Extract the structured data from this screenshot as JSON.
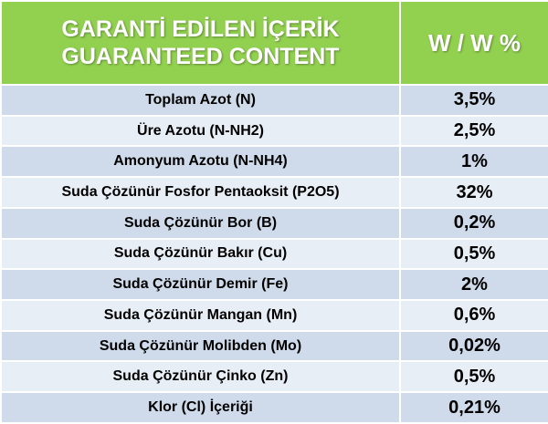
{
  "header": {
    "title_lines": [
      "GARANTİ EDİLEN İÇERİK",
      "GUARANTEED CONTENT"
    ],
    "unit": "W / W %"
  },
  "table": {
    "rows": [
      [
        "Toplam Azot (N)",
        "3,5%"
      ],
      [
        "Üre Azotu (N-NH2)",
        "2,5%"
      ],
      [
        "Amonyum Azotu (N-NH4)",
        "1%"
      ],
      [
        "Suda Çözünür Fosfor Pentaoksit (P2O5)",
        "32%"
      ],
      [
        "Suda Çözünür Bor (B)",
        "0,2%"
      ],
      [
        "Suda Çözünür Bakır (Cu)",
        "0,5%"
      ],
      [
        "Suda Çözünür Demir (Fe)",
        "2%"
      ],
      [
        "Suda Çözünür Mangan (Mn)",
        "0,6%"
      ],
      [
        "Suda Çözünür Molibden (Mo)",
        "0,02%"
      ],
      [
        "Suda Çözünür Çinko (Zn)",
        "0,5%"
      ],
      [
        "Klor (Cl) İçeriği",
        "0,21%"
      ]
    ]
  }
}
